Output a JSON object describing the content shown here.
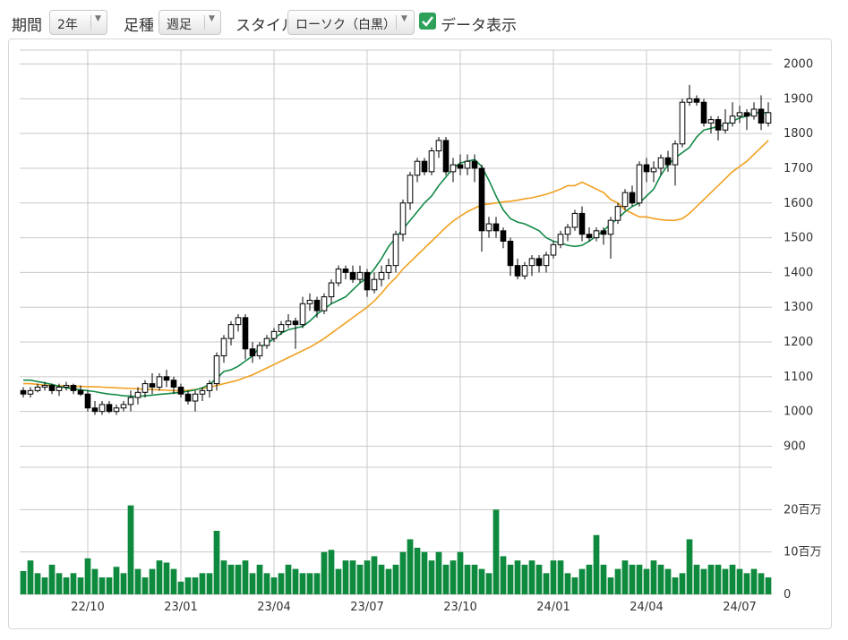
{
  "toolbar": {
    "period_label": "期間",
    "period_value": "2年",
    "interval_label": "足種",
    "interval_value": "週足",
    "style_label": "スタイル",
    "style_value": "ローソク（白黒）",
    "show_data_label": "データ表示",
    "show_data_checked": true
  },
  "colors": {
    "ma_short": "#138a48",
    "ma_long": "#f0a020",
    "volume": "#0e8a3e",
    "up_candle": "#ffffff",
    "down_candle": "#000000",
    "grid": "#c8c8c8"
  },
  "chart_data": {
    "type": "candlestick",
    "price_axis": {
      "ticks": [
        900,
        1000,
        1100,
        1200,
        1300,
        1400,
        1500,
        1600,
        1700,
        1800,
        1900,
        2000
      ],
      "ylim": [
        860,
        2040
      ]
    },
    "volume_axis": {
      "ticks": [
        0,
        10,
        20
      ],
      "tick_labels": [
        "0",
        "10百万",
        "20百万"
      ],
      "unit": "百万",
      "ylim": [
        0,
        30
      ]
    },
    "x_ticks": [
      "22/10",
      "23/01",
      "23/04",
      "23/07",
      "23/10",
      "24/01",
      "24/04",
      "24/07"
    ],
    "x_tick_weeks": [
      9,
      22,
      35,
      48,
      61,
      74,
      87,
      100
    ],
    "week_count": 105,
    "series": [
      {
        "name": "ma_short",
        "values": [
          1090,
          1090,
          1086,
          1082,
          1078,
          1072,
          1068,
          1065,
          1062,
          1060,
          1057,
          1053,
          1050,
          1048,
          1045,
          1044,
          1043,
          1045,
          1047,
          1049,
          1051,
          1053,
          1055,
          1058,
          1062,
          1068,
          1078,
          1095,
          1115,
          1120,
          1130,
          1145,
          1160,
          1185,
          1195,
          1210,
          1225,
          1235,
          1240,
          1245,
          1260,
          1280,
          1295,
          1310,
          1320,
          1330,
          1350,
          1370,
          1385,
          1410,
          1440,
          1475,
          1500,
          1525,
          1550,
          1575,
          1600,
          1620,
          1650,
          1675,
          1700,
          1715,
          1720,
          1725,
          1705,
          1665,
          1620,
          1580,
          1555,
          1545,
          1540,
          1530,
          1520,
          1500,
          1490,
          1485,
          1478,
          1475,
          1478,
          1490,
          1505,
          1520,
          1540,
          1555,
          1575,
          1590,
          1600,
          1620,
          1640,
          1680,
          1710,
          1730,
          1745,
          1760,
          1790,
          1810,
          1815,
          1820,
          1825,
          1835,
          1845,
          1850,
          1860,
          1860,
          1860
        ]
      },
      {
        "name": "ma_long",
        "values": [
          1080,
          1080,
          1078,
          1076,
          1075,
          1074,
          1073,
          1072,
          1072,
          1071,
          1071,
          1070,
          1069,
          1068,
          1067,
          1066,
          1065,
          1064,
          1063,
          1062,
          1061,
          1060,
          1060,
          1061,
          1063,
          1066,
          1070,
          1075,
          1080,
          1085,
          1090,
          1098,
          1105,
          1115,
          1125,
          1135,
          1145,
          1155,
          1165,
          1175,
          1185,
          1197,
          1210,
          1225,
          1240,
          1255,
          1270,
          1285,
          1300,
          1318,
          1340,
          1365,
          1385,
          1410,
          1430,
          1450,
          1470,
          1490,
          1510,
          1530,
          1548,
          1562,
          1575,
          1585,
          1595,
          1597,
          1600,
          1603,
          1605,
          1608,
          1612,
          1615,
          1620,
          1625,
          1632,
          1640,
          1650,
          1650,
          1660,
          1650,
          1640,
          1630,
          1610,
          1600,
          1580,
          1570,
          1560,
          1560,
          1555,
          1552,
          1550,
          1550,
          1555,
          1570,
          1590,
          1610,
          1630,
          1650,
          1670,
          1690,
          1705,
          1720,
          1740,
          1760,
          1780
        ]
      },
      {
        "name": "candles",
        "ohlc": [
          [
            1060,
            1070,
            1040,
            1050
          ],
          [
            1050,
            1070,
            1040,
            1060
          ],
          [
            1060,
            1080,
            1055,
            1070
          ],
          [
            1070,
            1085,
            1060,
            1075
          ],
          [
            1075,
            1080,
            1050,
            1060
          ],
          [
            1060,
            1080,
            1045,
            1070
          ],
          [
            1070,
            1085,
            1060,
            1075
          ],
          [
            1075,
            1080,
            1050,
            1060
          ],
          [
            1060,
            1075,
            1045,
            1050
          ],
          [
            1050,
            1060,
            1000,
            1010
          ],
          [
            1010,
            1030,
            990,
            1000
          ],
          [
            1000,
            1030,
            990,
            1020
          ],
          [
            1020,
            1030,
            995,
            1000
          ],
          [
            1000,
            1020,
            990,
            1010
          ],
          [
            1010,
            1030,
            1000,
            1020
          ],
          [
            1020,
            1060,
            1000,
            1040
          ],
          [
            1040,
            1070,
            1020,
            1055
          ],
          [
            1055,
            1090,
            1040,
            1080
          ],
          [
            1080,
            1110,
            1050,
            1070
          ],
          [
            1070,
            1110,
            1060,
            1100
          ],
          [
            1100,
            1120,
            1070,
            1090
          ],
          [
            1090,
            1100,
            1050,
            1070
          ],
          [
            1070,
            1080,
            1040,
            1050
          ],
          [
            1050,
            1060,
            1020,
            1030
          ],
          [
            1030,
            1060,
            1000,
            1050
          ],
          [
            1050,
            1070,
            1030,
            1060
          ],
          [
            1060,
            1090,
            1040,
            1080
          ],
          [
            1080,
            1170,
            1060,
            1160
          ],
          [
            1160,
            1220,
            1140,
            1210
          ],
          [
            1210,
            1260,
            1190,
            1250
          ],
          [
            1250,
            1280,
            1230,
            1270
          ],
          [
            1270,
            1280,
            1150,
            1180
          ],
          [
            1180,
            1200,
            1140,
            1160
          ],
          [
            1160,
            1200,
            1150,
            1190
          ],
          [
            1190,
            1220,
            1180,
            1210
          ],
          [
            1210,
            1240,
            1200,
            1230
          ],
          [
            1230,
            1260,
            1220,
            1250
          ],
          [
            1250,
            1280,
            1240,
            1260
          ],
          [
            1260,
            1270,
            1180,
            1250
          ],
          [
            1250,
            1330,
            1240,
            1310
          ],
          [
            1310,
            1340,
            1290,
            1320
          ],
          [
            1320,
            1330,
            1270,
            1290
          ],
          [
            1290,
            1340,
            1280,
            1330
          ],
          [
            1330,
            1380,
            1310,
            1370
          ],
          [
            1370,
            1420,
            1360,
            1410
          ],
          [
            1410,
            1420,
            1380,
            1400
          ],
          [
            1400,
            1420,
            1370,
            1380
          ],
          [
            1380,
            1420,
            1370,
            1400
          ],
          [
            1400,
            1410,
            1330,
            1350
          ],
          [
            1350,
            1400,
            1340,
            1380
          ],
          [
            1380,
            1420,
            1360,
            1400
          ],
          [
            1400,
            1440,
            1380,
            1420
          ],
          [
            1420,
            1520,
            1400,
            1510
          ],
          [
            1510,
            1610,
            1490,
            1600
          ],
          [
            1600,
            1690,
            1580,
            1680
          ],
          [
            1680,
            1730,
            1660,
            1720
          ],
          [
            1720,
            1730,
            1680,
            1690
          ],
          [
            1690,
            1760,
            1680,
            1750
          ],
          [
            1750,
            1790,
            1730,
            1780
          ],
          [
            1780,
            1790,
            1680,
            1690
          ],
          [
            1690,
            1730,
            1660,
            1710
          ],
          [
            1710,
            1740,
            1680,
            1700
          ],
          [
            1700,
            1740,
            1680,
            1720
          ],
          [
            1720,
            1740,
            1660,
            1700
          ],
          [
            1700,
            1710,
            1460,
            1520
          ],
          [
            1520,
            1560,
            1500,
            1540
          ],
          [
            1540,
            1560,
            1500,
            1520
          ],
          [
            1520,
            1530,
            1470,
            1490
          ],
          [
            1490,
            1500,
            1390,
            1420
          ],
          [
            1420,
            1440,
            1380,
            1390
          ],
          [
            1390,
            1430,
            1380,
            1420
          ],
          [
            1420,
            1450,
            1390,
            1440
          ],
          [
            1440,
            1450,
            1400,
            1420
          ],
          [
            1420,
            1460,
            1400,
            1450
          ],
          [
            1450,
            1490,
            1440,
            1480
          ],
          [
            1480,
            1520,
            1470,
            1510
          ],
          [
            1510,
            1540,
            1490,
            1530
          ],
          [
            1530,
            1580,
            1520,
            1570
          ],
          [
            1570,
            1590,
            1490,
            1510
          ],
          [
            1510,
            1530,
            1490,
            1500
          ],
          [
            1500,
            1530,
            1490,
            1520
          ],
          [
            1520,
            1530,
            1480,
            1510
          ],
          [
            1510,
            1560,
            1440,
            1550
          ],
          [
            1550,
            1600,
            1540,
            1590
          ],
          [
            1590,
            1640,
            1580,
            1630
          ],
          [
            1630,
            1650,
            1590,
            1600
          ],
          [
            1600,
            1720,
            1590,
            1710
          ],
          [
            1710,
            1730,
            1660,
            1690
          ],
          [
            1690,
            1720,
            1660,
            1700
          ],
          [
            1700,
            1740,
            1680,
            1730
          ],
          [
            1730,
            1750,
            1690,
            1710
          ],
          [
            1710,
            1780,
            1650,
            1770
          ],
          [
            1770,
            1900,
            1760,
            1890
          ],
          [
            1890,
            1940,
            1880,
            1900
          ],
          [
            1900,
            1910,
            1880,
            1890
          ],
          [
            1890,
            1900,
            1820,
            1830
          ],
          [
            1830,
            1850,
            1800,
            1840
          ],
          [
            1840,
            1850,
            1780,
            1810
          ],
          [
            1810,
            1870,
            1800,
            1830
          ],
          [
            1830,
            1890,
            1820,
            1850
          ],
          [
            1850,
            1880,
            1830,
            1860
          ],
          [
            1860,
            1870,
            1810,
            1850
          ],
          [
            1850,
            1890,
            1840,
            1870
          ],
          [
            1870,
            1910,
            1810,
            1830
          ],
          [
            1830,
            1890,
            1820,
            1860
          ]
        ]
      },
      {
        "name": "volume",
        "values": [
          5.5,
          8,
          5,
          4,
          7,
          5,
          4,
          5,
          4,
          8.5,
          6,
          4,
          4,
          6.5,
          5,
          21,
          6,
          4,
          6,
          8,
          7.5,
          6,
          3,
          4,
          4,
          5,
          5,
          15,
          8,
          7,
          7,
          8,
          5,
          7,
          5,
          4,
          5,
          7,
          6,
          5,
          5,
          5,
          10,
          10.5,
          6,
          8,
          8,
          7,
          8,
          9,
          7,
          6,
          7,
          10,
          13,
          11,
          10,
          8,
          10,
          7,
          8,
          10,
          7,
          7,
          6,
          5,
          20,
          9,
          7,
          8,
          7,
          8,
          7,
          5,
          8,
          8,
          5,
          4,
          6,
          7,
          14,
          7,
          4,
          6,
          8,
          7,
          7,
          6,
          8,
          7,
          6,
          4,
          5,
          13,
          7,
          6,
          7,
          7,
          6,
          7,
          6,
          5,
          6,
          5,
          4
        ]
      }
    ]
  }
}
